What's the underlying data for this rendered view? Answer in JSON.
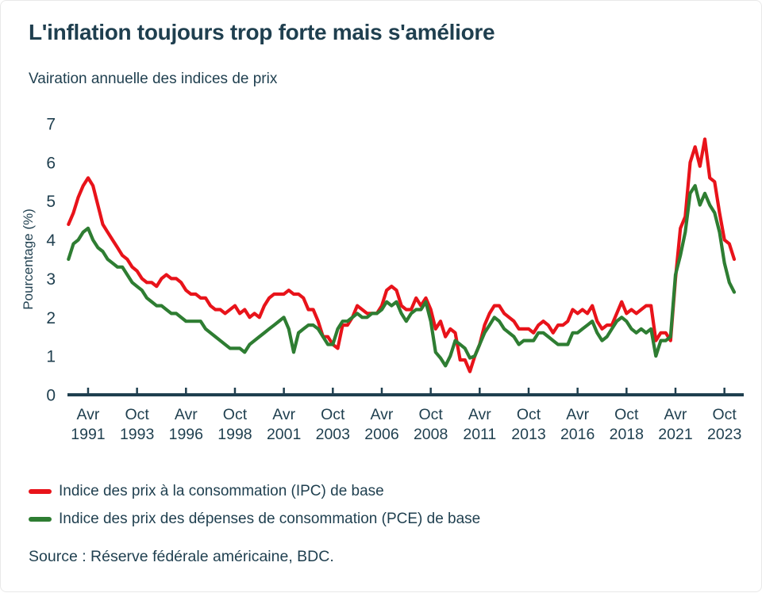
{
  "page": {
    "title": "L'inflation toujours trop forte mais s'améliore",
    "subtitle": "Vairation annuelle des indices de prix",
    "source": "Source : Réserve fédérale américaine, BDC."
  },
  "colors": {
    "text": "#1f3f4f",
    "axis": "#1f3f4f",
    "background": "#ffffff",
    "ipc_red": "#e8131a",
    "pce_green": "#2e7d32"
  },
  "legend": [
    {
      "label": "Indice des prix à la consommation (IPC) de base",
      "color": "#e8131a"
    },
    {
      "label": "Indice des prix des dépenses de consommation (PCE) de base",
      "color": "#2e7d32"
    }
  ],
  "chart_data": {
    "type": "line",
    "title": "L'inflation toujours trop forte mais s'améliore",
    "subtitle": "Vairation annuelle des indices de prix",
    "xlabel": "",
    "ylabel": "Pourcentage (%)",
    "ylim": [
      0,
      7
    ],
    "y_ticks": [
      0,
      1,
      2,
      3,
      4,
      5,
      6,
      7
    ],
    "grid": false,
    "legend_position": "bottom-left",
    "x_start": "1990-04",
    "x_end": "2024-04",
    "interval_months": 3,
    "total_months": 408,
    "x_ticks": [
      {
        "month": "Avr",
        "year": "1991",
        "m": 12
      },
      {
        "month": "Oct",
        "year": "1993",
        "m": 42
      },
      {
        "month": "Avr",
        "year": "1996",
        "m": 72
      },
      {
        "month": "Oct",
        "year": "1998",
        "m": 102
      },
      {
        "month": "Avr",
        "year": "2001",
        "m": 132
      },
      {
        "month": "Oct",
        "year": "2003",
        "m": 162
      },
      {
        "month": "Avr",
        "year": "2006",
        "m": 192
      },
      {
        "month": "Oct",
        "year": "2008",
        "m": 222
      },
      {
        "month": "Avr",
        "year": "2011",
        "m": 252
      },
      {
        "month": "Oct",
        "year": "2013",
        "m": 282
      },
      {
        "month": "Avr",
        "year": "2016",
        "m": 312
      },
      {
        "month": "Oct",
        "year": "2018",
        "m": 342
      },
      {
        "month": "Avr",
        "year": "2021",
        "m": 372
      },
      {
        "month": "Oct",
        "year": "2023",
        "m": 402
      }
    ],
    "series": [
      {
        "name": "Indice des prix à la consommation (IPC) de base",
        "color": "#e8131a",
        "values": [
          4.4,
          4.7,
          5.1,
          5.4,
          5.6,
          5.4,
          4.9,
          4.4,
          4.2,
          4.0,
          3.8,
          3.6,
          3.5,
          3.3,
          3.2,
          3.0,
          2.9,
          2.9,
          2.8,
          3.0,
          3.1,
          3.0,
          3.0,
          2.9,
          2.7,
          2.6,
          2.6,
          2.5,
          2.5,
          2.3,
          2.2,
          2.2,
          2.1,
          2.2,
          2.3,
          2.1,
          2.2,
          2.0,
          2.1,
          2.0,
          2.3,
          2.5,
          2.6,
          2.6,
          2.6,
          2.7,
          2.6,
          2.6,
          2.5,
          2.2,
          2.2,
          1.9,
          1.5,
          1.5,
          1.3,
          1.2,
          1.8,
          1.8,
          2.0,
          2.3,
          2.2,
          2.1,
          2.1,
          2.1,
          2.3,
          2.7,
          2.8,
          2.7,
          2.3,
          2.2,
          2.2,
          2.5,
          2.3,
          2.5,
          2.2,
          1.7,
          1.9,
          1.5,
          1.7,
          1.6,
          0.9,
          0.9,
          0.6,
          1.0,
          1.3,
          1.8,
          2.1,
          2.3,
          2.3,
          2.1,
          2.0,
          1.9,
          1.7,
          1.7,
          1.7,
          1.6,
          1.8,
          1.9,
          1.8,
          1.6,
          1.8,
          1.8,
          1.9,
          2.2,
          2.1,
          2.2,
          2.1,
          2.3,
          1.9,
          1.7,
          1.8,
          1.8,
          2.1,
          2.4,
          2.1,
          2.2,
          2.1,
          2.2,
          2.3,
          2.3,
          1.4,
          1.6,
          1.6,
          1.4,
          3.0,
          4.3,
          4.6,
          6.0,
          6.4,
          5.9,
          6.6,
          5.6,
          5.5,
          4.7,
          4.0,
          3.9,
          3.5
        ]
      },
      {
        "name": "Indice des prix des dépenses de consommation (PCE) de base",
        "color": "#2e7d32",
        "values": [
          3.5,
          3.9,
          4.0,
          4.2,
          4.3,
          4.0,
          3.8,
          3.7,
          3.5,
          3.4,
          3.3,
          3.3,
          3.1,
          2.9,
          2.8,
          2.7,
          2.5,
          2.4,
          2.3,
          2.3,
          2.2,
          2.1,
          2.1,
          2.0,
          1.9,
          1.9,
          1.9,
          1.9,
          1.7,
          1.6,
          1.5,
          1.4,
          1.3,
          1.2,
          1.2,
          1.2,
          1.1,
          1.3,
          1.4,
          1.5,
          1.6,
          1.7,
          1.8,
          1.9,
          2.0,
          1.7,
          1.1,
          1.6,
          1.7,
          1.8,
          1.8,
          1.7,
          1.5,
          1.3,
          1.3,
          1.7,
          1.9,
          1.9,
          2.0,
          2.1,
          2.0,
          2.0,
          2.1,
          2.1,
          2.2,
          2.4,
          2.3,
          2.4,
          2.1,
          1.9,
          2.1,
          2.2,
          2.2,
          2.4,
          1.9,
          1.1,
          0.95,
          0.75,
          1.0,
          1.4,
          1.3,
          1.2,
          0.95,
          1.0,
          1.3,
          1.6,
          1.8,
          2.0,
          1.9,
          1.7,
          1.6,
          1.5,
          1.3,
          1.4,
          1.4,
          1.4,
          1.6,
          1.6,
          1.5,
          1.4,
          1.3,
          1.3,
          1.3,
          1.6,
          1.6,
          1.7,
          1.8,
          1.9,
          1.6,
          1.4,
          1.5,
          1.7,
          1.9,
          2.0,
          1.9,
          1.7,
          1.6,
          1.7,
          1.6,
          1.7,
          1.0,
          1.4,
          1.4,
          1.5,
          3.1,
          3.6,
          4.2,
          5.2,
          5.4,
          4.9,
          5.2,
          4.9,
          4.7,
          4.2,
          3.4,
          2.9,
          2.65
        ]
      }
    ]
  }
}
